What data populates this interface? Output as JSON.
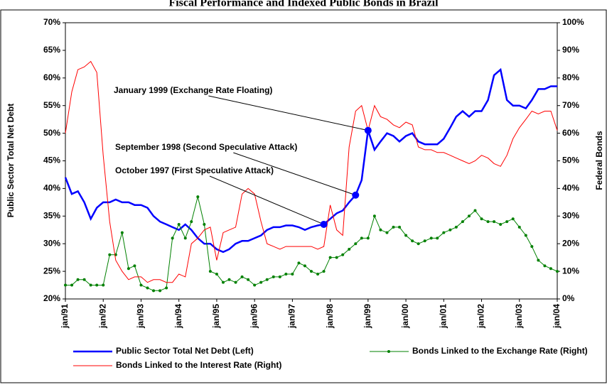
{
  "chart_data": {
    "type": "line",
    "title": "Fiscal Performance and Indexed Public Bonds in Brazil",
    "y_label": "Public Sector Total Net Debt",
    "y2_label": "Federal Bonds",
    "x": [
      1991,
      1991.17,
      1991.33,
      1991.5,
      1991.67,
      1991.83,
      1992,
      1992.17,
      1992.33,
      1992.5,
      1992.67,
      1992.83,
      1993,
      1993.17,
      1993.33,
      1993.5,
      1993.67,
      1993.83,
      1994,
      1994.17,
      1994.33,
      1994.5,
      1994.67,
      1994.83,
      1995,
      1995.17,
      1995.33,
      1995.5,
      1995.67,
      1995.83,
      1996,
      1996.17,
      1996.33,
      1996.5,
      1996.67,
      1996.83,
      1997,
      1997.17,
      1997.33,
      1997.5,
      1997.67,
      1997.83,
      1998,
      1998.17,
      1998.33,
      1998.5,
      1998.67,
      1998.83,
      1999,
      1999.17,
      1999.33,
      1999.5,
      1999.67,
      1999.83,
      2000,
      2000.17,
      2000.33,
      2000.5,
      2000.67,
      2000.83,
      2001,
      2001.17,
      2001.33,
      2001.5,
      2001.67,
      2001.83,
      2002,
      2002.17,
      2002.33,
      2002.5,
      2002.67,
      2002.83,
      2003,
      2003.17,
      2003.33,
      2003.5,
      2003.67,
      2003.83,
      2004
    ],
    "xlim": [
      1991,
      2004
    ],
    "xticks": [
      {
        "value": 1991,
        "label": "jan/91"
      },
      {
        "value": 1992,
        "label": "jan/92"
      },
      {
        "value": 1993,
        "label": "jan/93"
      },
      {
        "value": 1994,
        "label": "jan/94"
      },
      {
        "value": 1995,
        "label": "jan/95"
      },
      {
        "value": 1996,
        "label": "jan/96"
      },
      {
        "value": 1997,
        "label": "jan/97"
      },
      {
        "value": 1998,
        "label": "jan/98"
      },
      {
        "value": 1999,
        "label": "jan/99"
      },
      {
        "value": 2000,
        "label": "jan/00"
      },
      {
        "value": 2001,
        "label": "jan/01"
      },
      {
        "value": 2002,
        "label": "jan/02"
      },
      {
        "value": 2003,
        "label": "jan/03"
      },
      {
        "value": 2004,
        "label": "jan/04"
      }
    ],
    "ylim": [
      20,
      70
    ],
    "yticks": [
      {
        "value": 20,
        "label": "20%"
      },
      {
        "value": 25,
        "label": "25%"
      },
      {
        "value": 30,
        "label": "30%"
      },
      {
        "value": 35,
        "label": "35%"
      },
      {
        "value": 40,
        "label": "40%"
      },
      {
        "value": 45,
        "label": "45%"
      },
      {
        "value": 50,
        "label": "50%"
      },
      {
        "value": 55,
        "label": "55%"
      },
      {
        "value": 60,
        "label": "60%"
      },
      {
        "value": 65,
        "label": "65%"
      },
      {
        "value": 70,
        "label": "70%"
      }
    ],
    "y2lim": [
      0,
      100
    ],
    "y2ticks": [
      {
        "value": 0,
        "label": "0%"
      },
      {
        "value": 10,
        "label": "10%"
      },
      {
        "value": 20,
        "label": "20%"
      },
      {
        "value": 30,
        "label": "30%"
      },
      {
        "value": 40,
        "label": "40%"
      },
      {
        "value": 50,
        "label": "50%"
      },
      {
        "value": 60,
        "label": "60%"
      },
      {
        "value": 70,
        "label": "70%"
      },
      {
        "value": 80,
        "label": "80%"
      },
      {
        "value": 90,
        "label": "90%"
      },
      {
        "value": 100,
        "label": "100%"
      }
    ],
    "series": [
      {
        "name": "Public Sector Total Net Debt (Left)",
        "color": "#0000ff",
        "axis": "y",
        "values": [
          42,
          39,
          39.5,
          37.5,
          34.5,
          36.5,
          37.5,
          37.5,
          38,
          37.5,
          37.5,
          37,
          37,
          36.5,
          35,
          34,
          33.5,
          33,
          32.5,
          33.5,
          32.5,
          31,
          30,
          30,
          29,
          28.5,
          29,
          30,
          30.5,
          30.5,
          31,
          31.5,
          32.5,
          33,
          33,
          33.3,
          33.3,
          33,
          32.5,
          33,
          33.3,
          33.5,
          34.5,
          35.5,
          36,
          37.5,
          38.8,
          41.5,
          50.5,
          47,
          48.5,
          50,
          49.5,
          48.5,
          49.5,
          50,
          48.5,
          48,
          48,
          48,
          49,
          51,
          53,
          54,
          53,
          54,
          54,
          56,
          60.5,
          61.5,
          56,
          55,
          55,
          54.5,
          56,
          58,
          58,
          58.5,
          58.5
        ]
      },
      {
        "name": "Bonds Linked to the Exchange Rate (Right)",
        "color": "#008000",
        "axis": "y2",
        "values": [
          5,
          5,
          7,
          7,
          5,
          5,
          5,
          16,
          16,
          24,
          11,
          12,
          5,
          4,
          3,
          3,
          4,
          22,
          27,
          22,
          28,
          37,
          27,
          10,
          9,
          6,
          7,
          6,
          8,
          7,
          5,
          6,
          7,
          8,
          8,
          9,
          9,
          13,
          12,
          10,
          9,
          10,
          15,
          15,
          16,
          18,
          20,
          22,
          22,
          30,
          25,
          24,
          26,
          26,
          23,
          21,
          20,
          21,
          22,
          22,
          24,
          25,
          26,
          28,
          30,
          32,
          29,
          28,
          28,
          27,
          28,
          29,
          26,
          23,
          19,
          14,
          12,
          11,
          10
        ]
      },
      {
        "name": "Bonds Linked to the Interest Rate (Right)",
        "color": "#ff0000",
        "axis": "y2",
        "values": [
          60,
          75,
          83,
          84,
          86,
          82,
          52,
          28,
          14,
          10,
          7,
          8,
          8,
          6,
          7,
          7,
          6,
          6,
          9,
          8,
          20,
          22,
          25,
          26,
          14,
          24,
          25,
          26,
          38,
          40,
          38,
          28,
          20,
          19,
          18,
          19,
          19,
          19,
          19,
          19,
          18,
          19,
          34,
          25,
          23,
          55,
          68,
          70,
          61,
          70,
          66,
          65,
          63,
          62,
          64,
          63,
          55,
          54,
          54,
          53,
          53,
          52,
          51,
          50,
          49,
          50,
          52,
          51,
          49,
          48,
          52,
          58,
          62,
          65,
          68,
          67,
          68,
          68,
          61
        ]
      }
    ],
    "annotations": [
      {
        "text": "January 1999 (Exchange Rate Floating)",
        "x": 1999,
        "y": 50.5
      },
      {
        "text": "September 1998 (Second Speculative Attack)",
        "x": 1998.67,
        "y": 38.8
      },
      {
        "text": "October 1997 (First Speculative Attack)",
        "x": 1997.83,
        "y": 33.5
      }
    ]
  }
}
